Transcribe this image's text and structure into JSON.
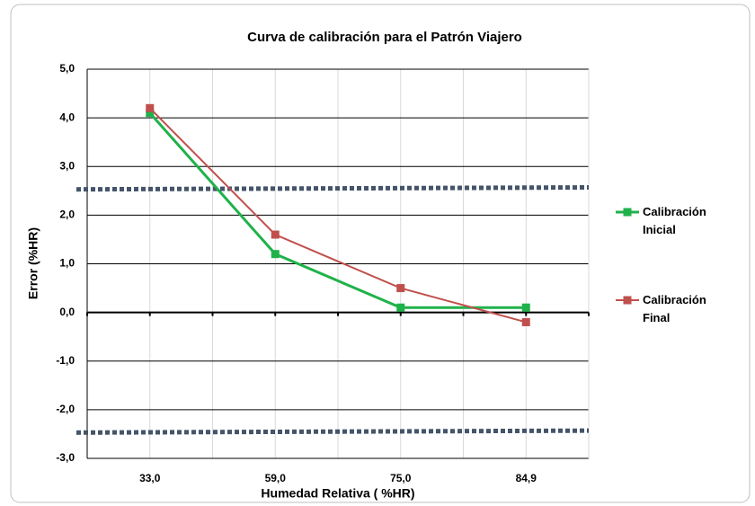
{
  "chart_data": {
    "type": "line",
    "title": "Curva de calibración para el Patrón Viajero",
    "xlabel": "Humedad Relativa ( %HR)",
    "ylabel": "Error (%HR)",
    "categories": [
      "33,0",
      "59,0",
      "75,0",
      "84,9"
    ],
    "series": [
      {
        "name": "Calibración Inicial",
        "color": "#1fb24a",
        "values": [
          4.1,
          1.2,
          0.1,
          0.1
        ]
      },
      {
        "name": "Calibración Final",
        "color": "#c0504d",
        "values": [
          4.2,
          1.6,
          0.5,
          -0.2
        ]
      }
    ],
    "reference_lines": [
      {
        "color": "#44546a",
        "values": [
          2.53,
          2.57
        ]
      },
      {
        "color": "#44546a",
        "values": [
          -2.47,
          -2.43
        ]
      }
    ],
    "ylim": [
      -3,
      5
    ],
    "yticks": [
      {
        "value": -3,
        "label": "-3,0"
      },
      {
        "value": -2,
        "label": "-2,0"
      },
      {
        "value": -1,
        "label": "-1,0"
      },
      {
        "value": 0,
        "label": "0,0"
      },
      {
        "value": 1,
        "label": "1,0"
      },
      {
        "value": 2,
        "label": "2,0"
      },
      {
        "value": 3,
        "label": "3,0"
      },
      {
        "value": 4,
        "label": "4,0"
      },
      {
        "value": 5,
        "label": "5,0"
      }
    ],
    "grid": true,
    "legend": "right"
  }
}
